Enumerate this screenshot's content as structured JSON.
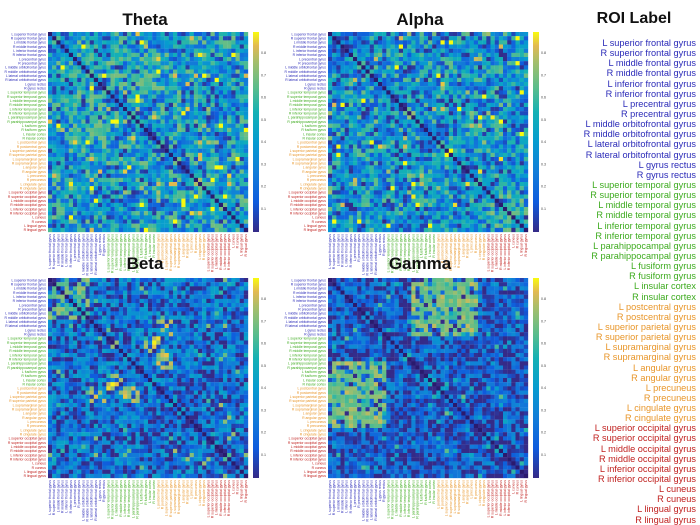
{
  "roi_panel": {
    "title": "ROI Label",
    "labels": [
      {
        "text": "L superior frontal gyrus",
        "group": "frontal"
      },
      {
        "text": "R superior frontal gyrus",
        "group": "frontal"
      },
      {
        "text": "L middle frontal gyrus",
        "group": "frontal"
      },
      {
        "text": "R middle frontal gyrus",
        "group": "frontal"
      },
      {
        "text": "L inferior frontal gyrus",
        "group": "frontal"
      },
      {
        "text": "R inferior frontal gyrus",
        "group": "frontal"
      },
      {
        "text": "L precentral gyrus",
        "group": "frontal"
      },
      {
        "text": "R precentral gyrus",
        "group": "frontal"
      },
      {
        "text": "L middle orbitofrontal gyrus",
        "group": "frontal"
      },
      {
        "text": "R middle orbitofrontal gyrus",
        "group": "frontal"
      },
      {
        "text": "L lateral orbitofrontal gyrus",
        "group": "frontal"
      },
      {
        "text": "R lateral orbitofrontal gyrus",
        "group": "frontal"
      },
      {
        "text": "L gyrus rectus",
        "group": "frontal"
      },
      {
        "text": "R gyrus rectus",
        "group": "frontal"
      },
      {
        "text": "L superior temporal gyrus",
        "group": "temporal"
      },
      {
        "text": "R superior temporal gyrus",
        "group": "temporal"
      },
      {
        "text": "L middle temporal gyrus",
        "group": "temporal"
      },
      {
        "text": "R middle temporal gyrus",
        "group": "temporal"
      },
      {
        "text": "L inferior temporal gyrus",
        "group": "temporal"
      },
      {
        "text": "R inferior temporal gyrus",
        "group": "temporal"
      },
      {
        "text": "L parahippocampal gyrus",
        "group": "temporal"
      },
      {
        "text": "R parahippocampal gyrus",
        "group": "temporal"
      },
      {
        "text": "L fusiform gyrus",
        "group": "temporal"
      },
      {
        "text": "R fusiform gyrus",
        "group": "temporal"
      },
      {
        "text": "L insular cortex",
        "group": "temporal"
      },
      {
        "text": "R insular cortex",
        "group": "temporal"
      },
      {
        "text": "L postcentral gyrus",
        "group": "parietal"
      },
      {
        "text": "R postcentral gyrus",
        "group": "parietal"
      },
      {
        "text": "L superior parietal gyrus",
        "group": "parietal"
      },
      {
        "text": "R superior parietal gyrus",
        "group": "parietal"
      },
      {
        "text": "L supramarginal gyrus",
        "group": "parietal"
      },
      {
        "text": "R supramarginal gyrus",
        "group": "parietal"
      },
      {
        "text": "L angular gyrus",
        "group": "parietal"
      },
      {
        "text": "R angular gyrus",
        "group": "parietal"
      },
      {
        "text": "L precuneus",
        "group": "parietal"
      },
      {
        "text": "R precuneus",
        "group": "parietal"
      },
      {
        "text": "L cingulate gyrus",
        "group": "parietal"
      },
      {
        "text": "R cingulate gyrus",
        "group": "parietal"
      },
      {
        "text": "L superior occipital gyrus",
        "group": "occipital"
      },
      {
        "text": "R superior occipital gyrus",
        "group": "occipital"
      },
      {
        "text": "L middle occipital gyrus",
        "group": "occipital"
      },
      {
        "text": "R middle occipital gyrus",
        "group": "occipital"
      },
      {
        "text": "L inferior occipital gyrus",
        "group": "occipital"
      },
      {
        "text": "R inferior occipital gyrus",
        "group": "occipital"
      },
      {
        "text": "L cuneus",
        "group": "occipital"
      },
      {
        "text": "R cuneus",
        "group": "occipital"
      },
      {
        "text": "L lingual gyrus",
        "group": "occipital"
      },
      {
        "text": "R lingual gyrus",
        "group": "occipital"
      }
    ]
  },
  "colors": {
    "frontal": "#2a2ab8",
    "temporal": "#3dab1e",
    "parietal": "#e8962a",
    "occipital": "#c0211f",
    "colormap_low": "#3e26a8",
    "colormap_mid": "#1fa0de",
    "colormap_high": "#f9fb15",
    "diagonal": "#2a1a6e"
  },
  "chart_data": [
    {
      "type": "heatmap",
      "title": "Theta",
      "rows": 48,
      "cols": 48,
      "value_range": [
        0,
        1
      ],
      "seed": 11,
      "base": 0.4,
      "spread": 0.38,
      "hot_blocks": [
        [
          14,
          26,
          4,
          14,
          0.78
        ]
      ],
      "colorbar_ticks": [
        "0.8",
        "0.7",
        "0.6",
        "0.5",
        "0.4",
        "0.3",
        "0.2",
        "0.1"
      ]
    },
    {
      "type": "heatmap",
      "title": "Alpha",
      "rows": 48,
      "cols": 48,
      "value_range": [
        0,
        1
      ],
      "seed": 23,
      "base": 0.38,
      "spread": 0.38,
      "hot_blocks": [
        [
          38,
          48,
          38,
          48,
          0.82
        ]
      ],
      "colorbar_ticks": [
        "0.8",
        "0.7",
        "0.6",
        "0.5",
        "0.4",
        "0.3",
        "0.2",
        "0.1"
      ]
    },
    {
      "type": "heatmap",
      "title": "Beta",
      "rows": 48,
      "cols": 48,
      "value_range": [
        0,
        1
      ],
      "seed": 37,
      "base": 0.22,
      "spread": 0.3,
      "hot_blocks": [
        [
          0,
          10,
          0,
          10,
          0.85
        ],
        [
          14,
          18,
          22,
          28,
          1.0
        ],
        [
          26,
          30,
          10,
          14,
          0.95
        ],
        [
          26,
          30,
          18,
          22,
          0.95
        ]
      ],
      "colorbar_ticks": [
        "0.8",
        "0.7",
        "0.6",
        "0.5",
        "0.4",
        "0.3",
        "0.2",
        "0.1"
      ]
    },
    {
      "type": "heatmap",
      "title": "Gamma",
      "rows": 48,
      "cols": 48,
      "value_range": [
        0,
        1
      ],
      "seed": 53,
      "base": 0.16,
      "spread": 0.25,
      "hot_blocks": [
        [
          20,
          36,
          0,
          14,
          0.9
        ],
        [
          0,
          12,
          22,
          34,
          0.85
        ]
      ],
      "colorbar_ticks": [
        "0.8",
        "0.7",
        "0.6",
        "0.5",
        "0.4",
        "0.3",
        "0.2",
        "0.1"
      ]
    }
  ]
}
